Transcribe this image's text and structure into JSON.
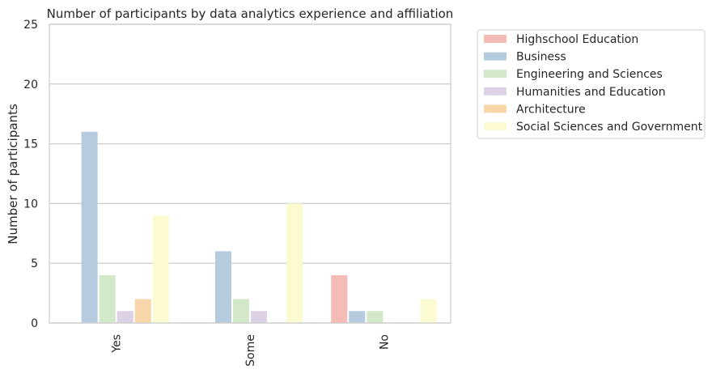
{
  "chart_data": {
    "type": "bar",
    "title": "Number of participants by data analytics experience and affiliation",
    "xlabel": "",
    "ylabel": "Number of participants",
    "ylim": [
      0,
      25
    ],
    "yticks": [
      0,
      5,
      10,
      15,
      20,
      25
    ],
    "categories": [
      "Yes",
      "Some",
      "No"
    ],
    "grid": "horizontal",
    "legend_position": "outside-right",
    "series": [
      {
        "name": "Highschool Education",
        "color": "#f4bcb6",
        "values": [
          0,
          0,
          4
        ]
      },
      {
        "name": "Business",
        "color": "#b7cbdf",
        "values": [
          16,
          6,
          1
        ]
      },
      {
        "name": "Engineering and Sciences",
        "color": "#d2e8c8",
        "values": [
          4,
          2,
          1
        ]
      },
      {
        "name": "Humanities and Education",
        "color": "#ddd1e5",
        "values": [
          1,
          1,
          0
        ]
      },
      {
        "name": "Architecture",
        "color": "#f7d7a9",
        "values": [
          2,
          0,
          0
        ]
      },
      {
        "name": "Social Sciences and Government",
        "color": "#fbfad0",
        "values": [
          9,
          10,
          2
        ]
      }
    ]
  }
}
